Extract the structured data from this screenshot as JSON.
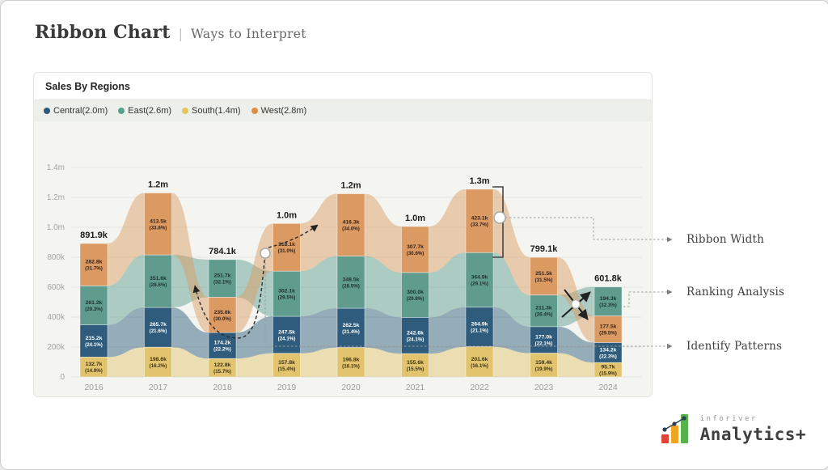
{
  "page": {
    "title": "Ribbon Chart",
    "separator": "|",
    "subtitle": "Ways to Interpret"
  },
  "card": {
    "title": "Sales By Regions"
  },
  "legend": [
    {
      "label": "Central(2.0m)",
      "color": "#2e5a78"
    },
    {
      "label": "East(2.6m)",
      "color": "#57a28c"
    },
    {
      "label": "South(1.4m)",
      "color": "#e3c75f"
    },
    {
      "label": "West(2.8m)",
      "color": "#e08d44"
    }
  ],
  "annotations": {
    "ribbon_width": "Ribbon Width",
    "ranking": "Ranking Analysis",
    "patterns": "Identify Patterns"
  },
  "logo": {
    "brand": "inforiver",
    "product": "Analytics+"
  },
  "chart_data": {
    "type": "bar",
    "variant": "ribbon",
    "title": "Sales By Regions",
    "categories": [
      "2016",
      "2017",
      "2018",
      "2019",
      "2020",
      "2021",
      "2022",
      "2023",
      "2024"
    ],
    "y_ticks": [
      "0",
      "200k",
      "400k",
      "600k",
      "800k",
      "1.0m",
      "1.2m",
      "1.4m"
    ],
    "y_tick_values_k": [
      0,
      200,
      400,
      600,
      800,
      1000,
      1200,
      1400
    ],
    "ylim_k": [
      0,
      1400
    ],
    "grid": true,
    "legend_position": "top",
    "totals": [
      "891.9k",
      "1.2m",
      "784.1k",
      "1.0m",
      "1.2m",
      "1.0m",
      "1.3m",
      "799.1k",
      "601.8k"
    ],
    "series": [
      {
        "name": "Central",
        "color": "#2f5c7c",
        "label_color": "#ffffff",
        "values_k": [
          215.2,
          265.7,
          174.2,
          247.5,
          262.5,
          242.6,
          264.9,
          177.0,
          134.2
        ],
        "value_labels": [
          "215.2k",
          "265.7k",
          "174.2k",
          "247.5k",
          "262.5k",
          "242.6k",
          "264.9k",
          "177.0k",
          "134.2k"
        ],
        "pct_labels": [
          "(24.1%)",
          "(21.6%)",
          "(22.2%)",
          "(24.1%)",
          "(21.4%)",
          "(24.1%)",
          "(21.1%)",
          "(22.1%)",
          "(22.3%)"
        ]
      },
      {
        "name": "East",
        "color": "#5f9c8e",
        "label_color": "#1d3230",
        "values_k": [
          261.2,
          351.6,
          251.7,
          302.1,
          348.5,
          300.0,
          364.9,
          211.3,
          194.3
        ],
        "value_labels": [
          "261.2k",
          "351.6k",
          "251.7k",
          "302.1k",
          "348.5k",
          "300.0k",
          "364.9k",
          "211.3k",
          "194.3k"
        ],
        "pct_labels": [
          "(29.3%)",
          "(28.6%)",
          "(32.1%)",
          "(29.5%)",
          "(28.5%)",
          "(29.8%)",
          "(29.1%)",
          "(26.4%)",
          "(32.3%)"
        ]
      },
      {
        "name": "South",
        "color": "#e1c46d",
        "label_color": "#3d3117",
        "values_k": [
          132.7,
          198.6,
          122.8,
          157.8,
          196.8,
          155.6,
          201.6,
          159.4,
          95.7
        ],
        "value_labels": [
          "132.7k",
          "198.6k",
          "122.8k",
          "157.8k",
          "196.8k",
          "155.6k",
          "201.6k",
          "159.4k",
          "95.7k"
        ],
        "pct_labels": [
          "(14.9%)",
          "(16.2%)",
          "(15.7%)",
          "(15.4%)",
          "(16.1%)",
          "(15.5%)",
          "(16.1%)",
          "(19.9%)",
          "(15.9%)"
        ]
      },
      {
        "name": "West",
        "color": "#dc9a63",
        "label_color": "#33231a",
        "values_k": [
          282.8,
          413.5,
          235.6,
          318.1,
          416.3,
          307.7,
          423.1,
          251.5,
          177.5
        ],
        "value_labels": [
          "282.8k",
          "413.5k",
          "235.6k",
          "318.1k",
          "416.3k",
          "307.7k",
          "423.1k",
          "251.5k",
          "177.5k"
        ],
        "pct_labels": [
          "(31.7%)",
          "(33.6%)",
          "(30.0%)",
          "(31.0%)",
          "(34.0%)",
          "(30.6%)",
          "(33.7%)",
          "(31.5%)",
          "(29.5%)"
        ]
      }
    ]
  }
}
